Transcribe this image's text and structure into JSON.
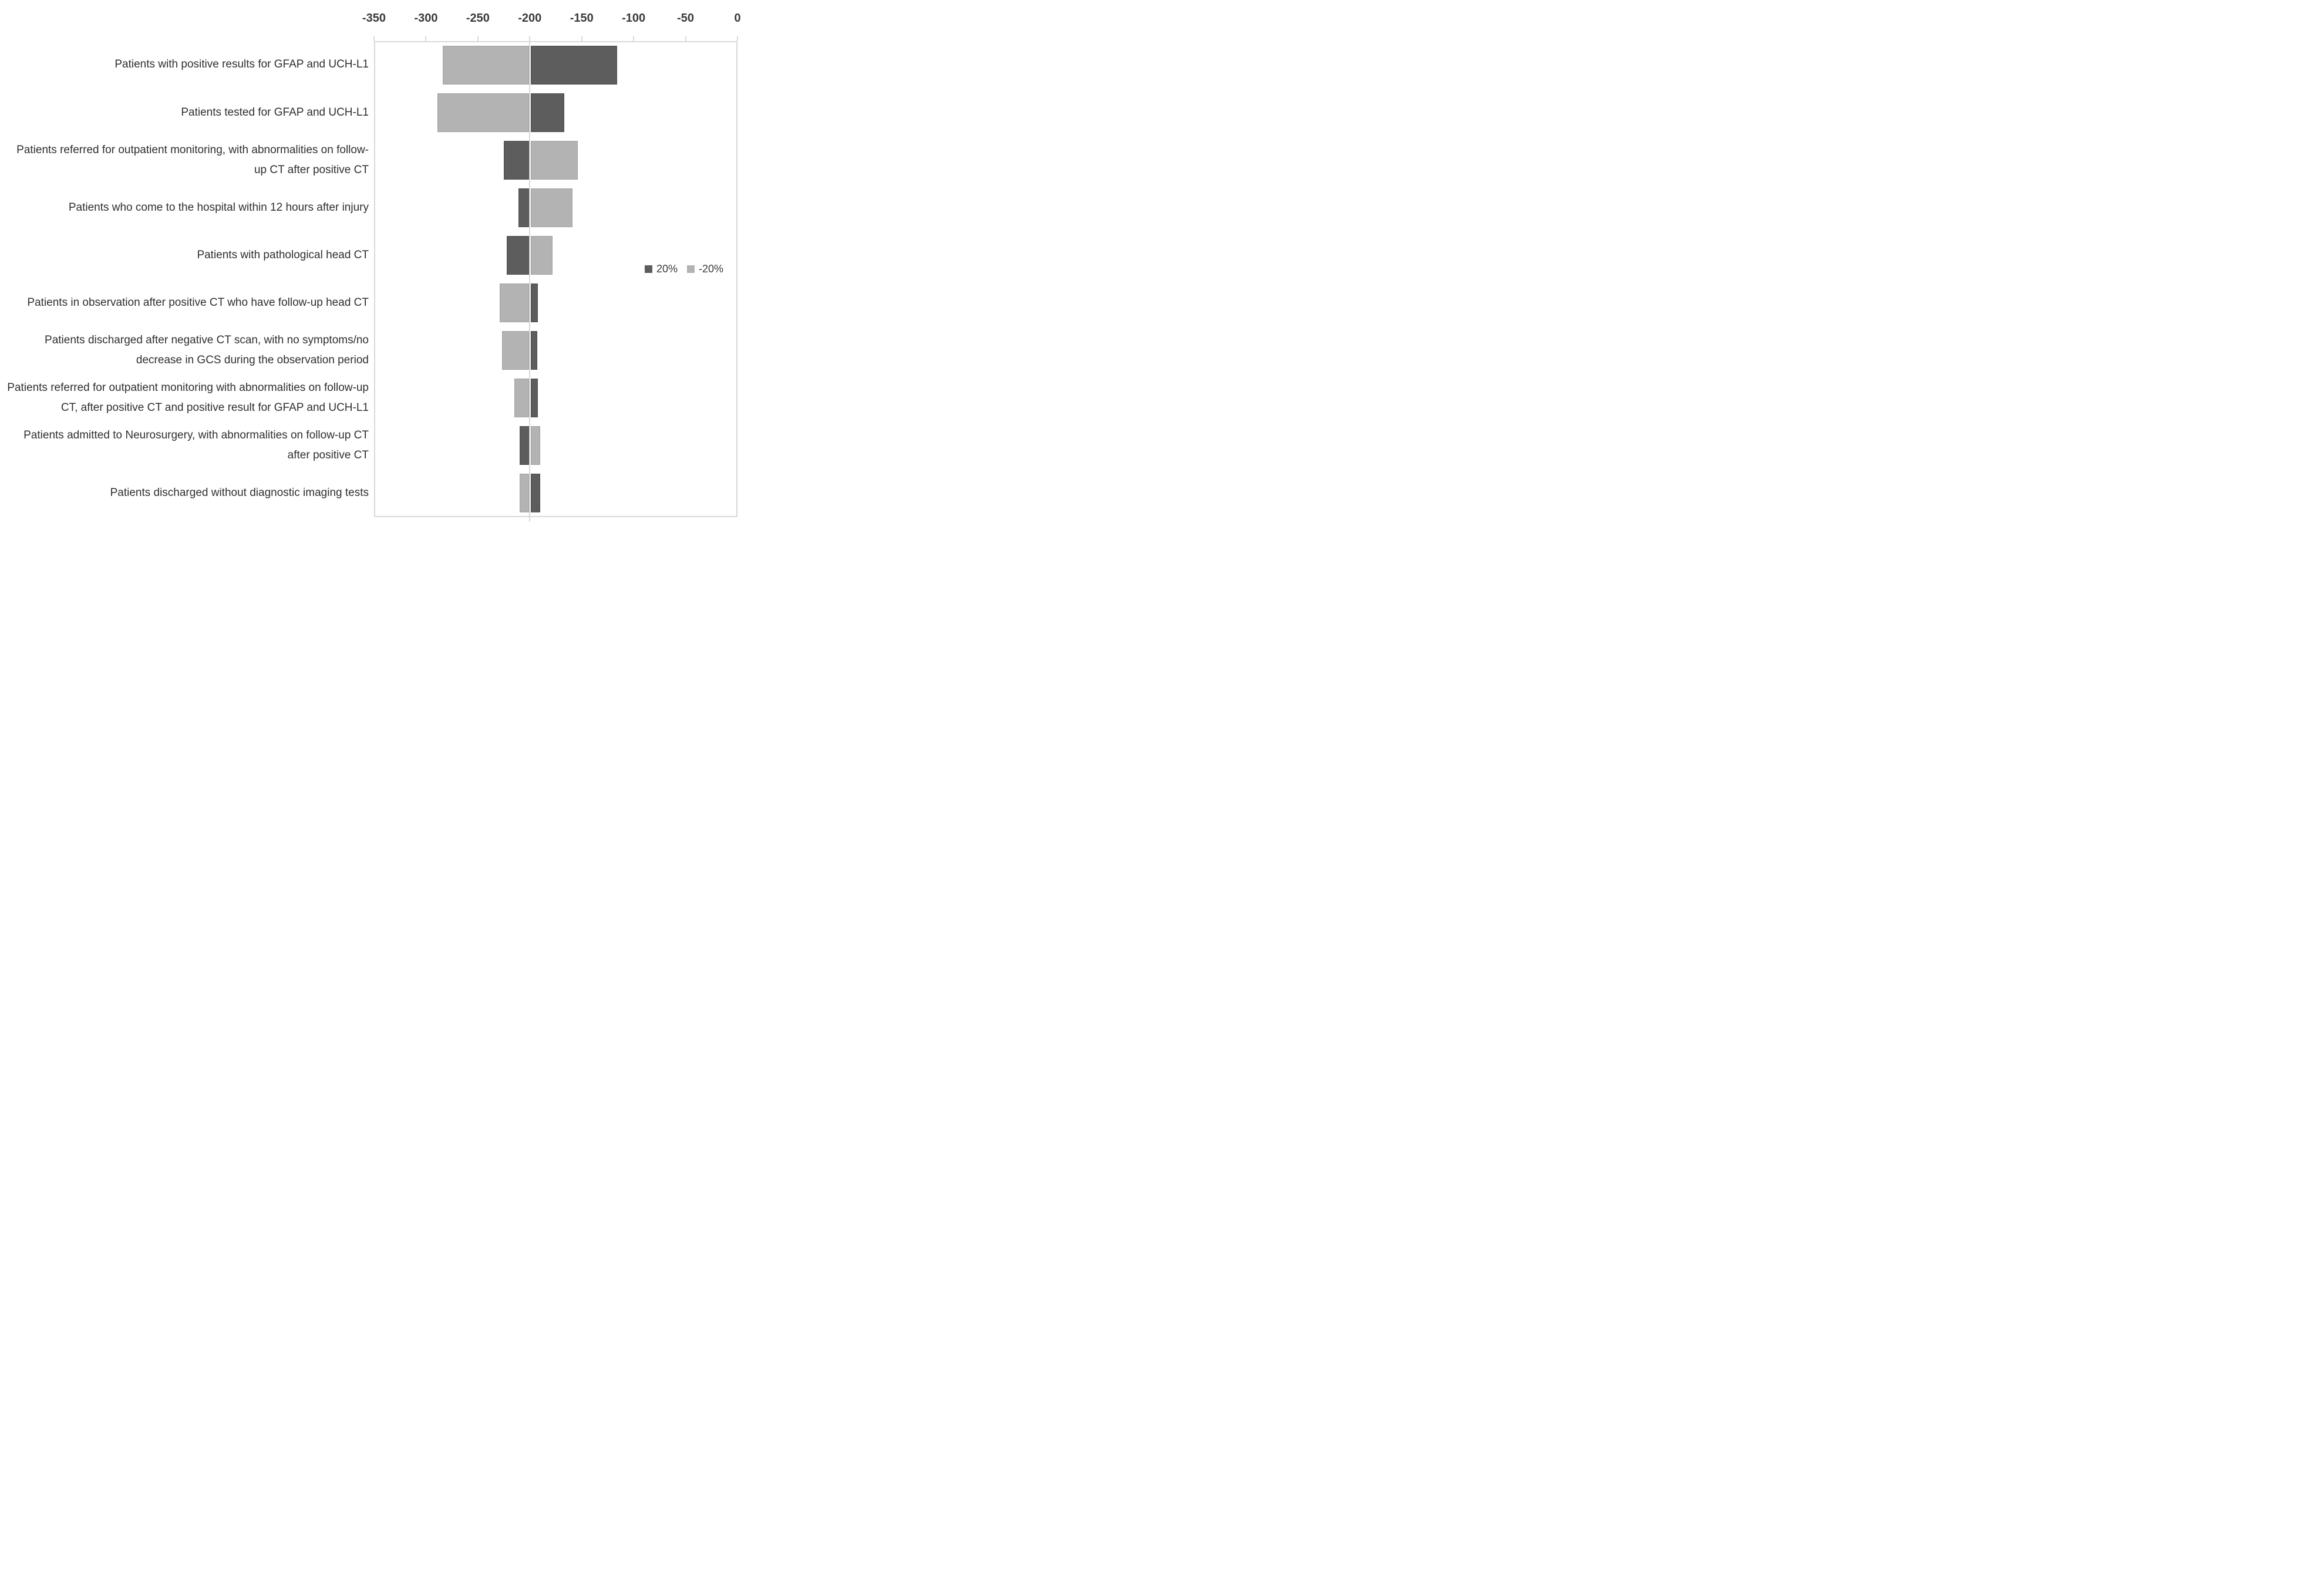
{
  "chart_data": {
    "type": "bar",
    "subtype": "tornado",
    "orientation": "horizontal",
    "title": "",
    "xlabel": "",
    "ylabel": "",
    "grid": "single-vertical-line-at-base",
    "legend_position": "right-middle-inside-plot",
    "x_axis": {
      "position": "top",
      "range": [
        -350,
        0
      ],
      "ticks": [
        -350,
        -300,
        -250,
        -200,
        -150,
        -100,
        -50,
        0
      ],
      "tick_labels": [
        "-350",
        "-300",
        "-250",
        "-200",
        "-150",
        "-100",
        "-50",
        "0"
      ]
    },
    "base_value": -200,
    "categories": [
      "Patients with positive results for GFAP and UCH-L1",
      "Patients tested for GFAP and UCH-L1",
      "Patients referred for outpatient monitoring, with abnormalities on follow-up CT after positive CT",
      "Patients who come to the hospital within 12 hours after injury",
      "Patients with pathological head CT",
      "Patients in observation after positive CT who have follow-up head CT",
      "Patients discharged after negative CT scan, with no symptoms/no decrease in GCS during the observation period",
      "Patients referred for outpatient monitoring with abnormalities on follow-up CT, after positive CT and positive result for GFAP and UCH-L1",
      "Patients admitted to Neurosurgery, with abnormalities on follow-up CT after positive CT",
      "Patients discharged without diagnostic imaging tests"
    ],
    "series": [
      {
        "name": "20%",
        "color": "#5d5d5d",
        "values": [
          -116,
          -167,
          -225,
          -211,
          -222,
          -192,
          -193,
          -192,
          -210,
          -190
        ]
      },
      {
        "name": "-20%",
        "color": "#b3b3b3",
        "values": [
          -284,
          -289,
          -154,
          -159,
          -178,
          -229,
          -227,
          -215,
          -190,
          -210
        ]
      }
    ]
  },
  "legend": {
    "items": [
      {
        "label": "20%",
        "color": "#5d5d5d"
      },
      {
        "label": "-20%",
        "color": "#b3b3b3"
      }
    ]
  },
  "colors": {
    "series_20": "#5d5d5d",
    "series_minus20": "#b3b3b3",
    "plot_border": "#d9d9d9",
    "base_line": "#d9d9d9",
    "axis_text": "#3a3a3a",
    "category_text": "#2f2f2f",
    "background": "#ffffff"
  }
}
